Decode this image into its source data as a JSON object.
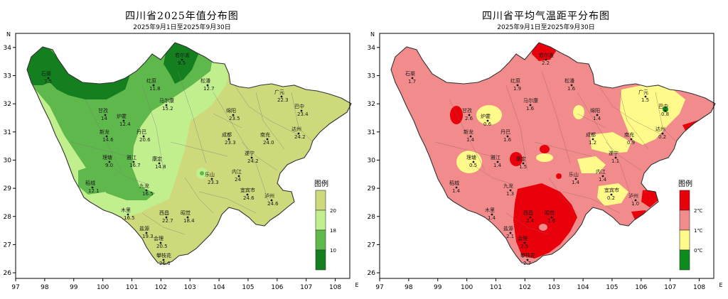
{
  "maps": [
    {
      "id": "left",
      "title": "四川省2025年值分布图",
      "subtitle": "2025年9月1日至2025年9月30日",
      "legend": {
        "title": "图例",
        "colors": [
          "#cdd97b",
          "#c2ef8e",
          "#5fb84c",
          "#137f1f"
        ],
        "labels": [
          "20",
          "18",
          "10"
        ]
      },
      "stations": [
        {
          "name": "石渠",
          "value": "7.5"
        },
        {
          "name": "若尔盖",
          "value": "9.5"
        },
        {
          "name": "红原",
          "value": "11.8"
        },
        {
          "name": "松潘",
          "value": "12.7"
        },
        {
          "name": "马尔康",
          "value": "15.2"
        },
        {
          "name": "甘孜",
          "value": "14"
        },
        {
          "name": "炉霍",
          "value": "12.4"
        },
        {
          "name": "新龙",
          "value": "14.6"
        },
        {
          "name": "丹巴",
          "value": "20.6"
        },
        {
          "name": "理塘",
          "value": "9.0"
        },
        {
          "name": "雅江",
          "value": "16.7"
        },
        {
          "name": "康定",
          "value": "14.8"
        },
        {
          "name": "稻城",
          "value": "12.1"
        },
        {
          "name": "九龙",
          "value": "16.5"
        },
        {
          "name": "木里",
          "value": "16.5"
        },
        {
          "name": "西昌",
          "value": "22.7"
        },
        {
          "name": "昭觉",
          "value": "18.4"
        },
        {
          "name": "盐源",
          "value": "19.3"
        },
        {
          "name": "会理",
          "value": "20.5"
        },
        {
          "name": "攀枝花",
          "value": "26.6"
        },
        {
          "name": "成都",
          "value": "23.3"
        },
        {
          "name": "绵阳",
          "value": "23.5"
        },
        {
          "name": "广元",
          "value": "22.3"
        },
        {
          "name": "巴中",
          "value": "23.4"
        },
        {
          "name": "南充",
          "value": "24.0"
        },
        {
          "name": "达州",
          "value": "24.2"
        },
        {
          "name": "遂宁",
          "value": "24.2"
        },
        {
          "name": "内江",
          "value": "24"
        },
        {
          "name": "乐山",
          "value": "23.3"
        },
        {
          "name": "宜宾市",
          "value": "24.6"
        },
        {
          "name": "泸州",
          "value": "24.6"
        }
      ]
    },
    {
      "id": "right",
      "title": "四川省平均气温距平分布图",
      "subtitle": "2025年9月1日至2025年9月30日",
      "legend": {
        "title": "图例",
        "colors": [
          "#e8000b",
          "#f28b8b",
          "#fffa8a",
          "#0e8b1e"
        ],
        "labels": [
          "2℃",
          "1℃",
          "0℃"
        ]
      },
      "stations": [
        {
          "name": "石渠",
          "value": "1.7"
        },
        {
          "name": "若尔盖",
          "value": "2.2"
        },
        {
          "name": "红原",
          "value": "1.9"
        },
        {
          "name": "松潘",
          "value": "1.6"
        },
        {
          "name": "马尔康",
          "value": "1.6"
        },
        {
          "name": "甘孜",
          "value": "2.6"
        },
        {
          "name": "炉霍",
          "value": "0.6"
        },
        {
          "name": "新龙",
          "value": "1.4"
        },
        {
          "name": "丹巴",
          "value": "1.6"
        },
        {
          "name": "理塘",
          "value": "0.5"
        },
        {
          "name": "雅江",
          "value": "1.4"
        },
        {
          "name": "康定",
          "value": "1.5"
        },
        {
          "name": "稻城",
          "value": "1.4"
        },
        {
          "name": "九龙",
          "value": "1.3"
        },
        {
          "name": "木里",
          "value": "1.4"
        },
        {
          "name": "西昌",
          "value": "2.4"
        },
        {
          "name": "昭觉",
          "value": "1.6"
        },
        {
          "name": "盐源",
          "value": "2.1"
        },
        {
          "name": "会理",
          "value": "2.5"
        },
        {
          "name": "攀枝花",
          "value": "2.7"
        },
        {
          "name": "成都",
          "value": "1.2"
        },
        {
          "name": "绵阳",
          "value": "1.4"
        },
        {
          "name": "广元",
          "value": "1.5"
        },
        {
          "name": "巴中",
          "value": "0.8"
        },
        {
          "name": "南充",
          "value": "0.9"
        },
        {
          "name": "达州",
          "value": "0.2"
        },
        {
          "name": "遂宁",
          "value": "1.1"
        },
        {
          "name": "内江",
          "value": "1.4"
        },
        {
          "name": "乐山",
          "value": "1.4"
        },
        {
          "name": "宜宾市",
          "value": "0.2"
        },
        {
          "name": "泸州",
          "value": "1.0"
        }
      ]
    }
  ],
  "axes": {
    "x_ticks": [
      "97",
      "98",
      "99",
      "100",
      "101",
      "102",
      "103",
      "104",
      "105",
      "106",
      "107",
      "108"
    ],
    "y_ticks": [
      "26",
      "27",
      "28",
      "29",
      "30",
      "31",
      "32",
      "33",
      "34"
    ],
    "x_suffix": "E",
    "y_suffix": "N"
  }
}
